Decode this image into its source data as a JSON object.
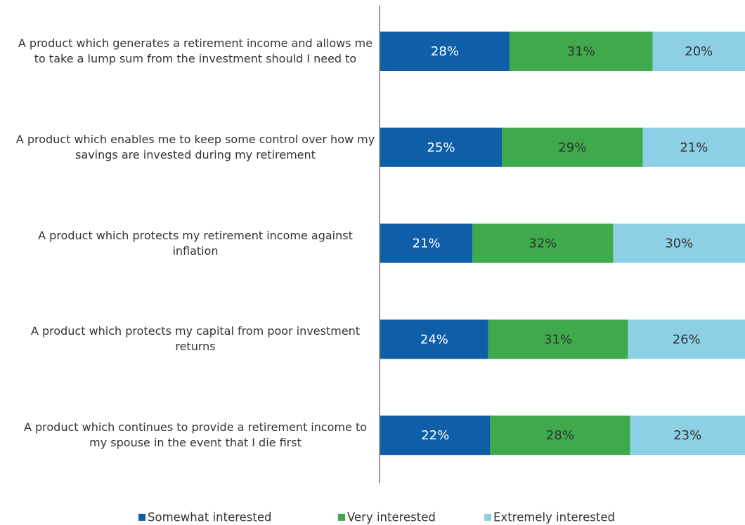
{
  "chart_data": {
    "type": "stacked-bar-horizontal",
    "categories": [
      "A product which generates a retirement income and allows me to take a lump sum from the investment should I need to",
      "A product which enables me to keep some control over how my savings are invested during my retirement",
      "A product which protects my retirement income against inflation",
      "A product which protects my capital from poor investment returns",
      "A product which continues to provide a retirement income to my spouse in the event that I die first"
    ],
    "series": [
      {
        "name": "Somewhat interested",
        "color": "#0f5fa8",
        "label_color": "#ffffff",
        "values": [
          28,
          25,
          21,
          24,
          22
        ],
        "value_labels": [
          "28%",
          "25%",
          "21%",
          "24%",
          "22%"
        ]
      },
      {
        "name": "Very interested",
        "color": "#3eaa4b",
        "label_color": "#333333",
        "values": [
          31,
          29,
          32,
          31,
          28
        ],
        "value_labels": [
          "31%",
          "29%",
          "32%",
          "31%",
          "28%"
        ]
      },
      {
        "name": "Extremely interested",
        "color": "#8dcfe4",
        "label_color": "#333333",
        "values": [
          20,
          21,
          30,
          26,
          23
        ],
        "value_labels": [
          "20%",
          "21%",
          "30%",
          "26%",
          "23%"
        ]
      }
    ],
    "legend": "bottom"
  }
}
